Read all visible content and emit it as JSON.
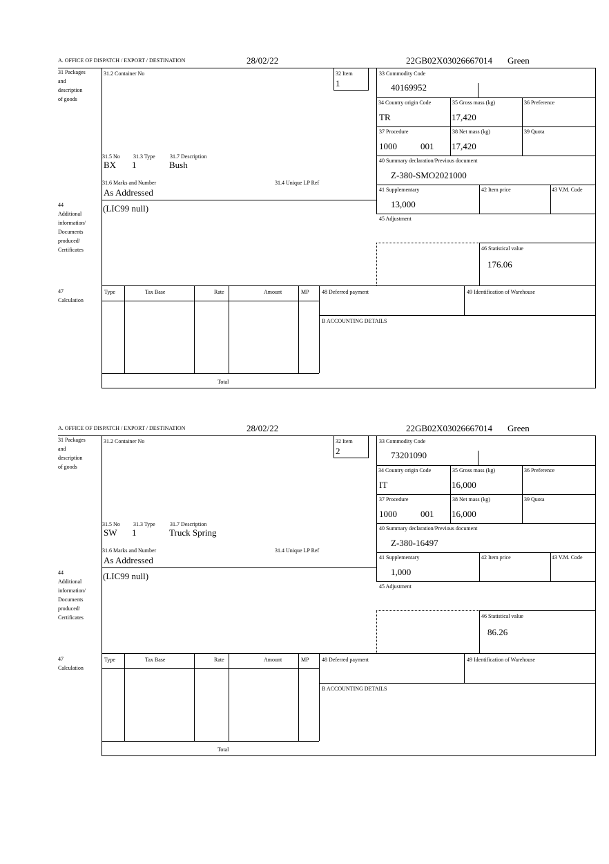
{
  "labels": {
    "office": "A.  OFFICE OF DISPATCH / EXPORT / DESTINATION",
    "packages": [
      "31 Packages",
      "and",
      "description",
      "of goods"
    ],
    "container": "31.2 Container No",
    "item": "32 Item",
    "commodity": "33 Commodity Code",
    "origin": "34 Country origin Code",
    "gross": "35 Gross mass (kg)",
    "preference": "36 Preference",
    "procedure": "37 Procedure",
    "net": "38 Net mass (kg)",
    "quota": "39 Quota",
    "summary": "40 Summary declaration/Previous document",
    "supplementary": "41 Supplementary",
    "item_price": "42 Item price",
    "vm_code": "43 V.M. Code",
    "adjustment": "45 Adjustment",
    "statistical": "46 Statistical value",
    "no": "31.5 No",
    "type": "31.3 Type",
    "description": "31.7 Description",
    "marks": "31.6 Marks and Number",
    "unique_ref": "31.4 Unique LP Ref",
    "additional": [
      "44",
      "Additional",
      "information/",
      "Documents",
      "produced/",
      "Certificates"
    ],
    "calculation": [
      "47",
      "Calculation"
    ],
    "calc_cols": [
      "Type",
      "Tax Base",
      "Rate",
      "Amount",
      "MP"
    ],
    "total": "Total",
    "deferred": "48 Deferred payment",
    "warehouse": "49 Identification of Warehouse",
    "accounting": "B ACCOUNTING DETAILS"
  },
  "items": [
    {
      "date": "28/02/22",
      "reference": "22GB02X03026667014",
      "route": "Green",
      "item": "1",
      "commodity": "40169952",
      "origin": "TR",
      "gross": "17,420",
      "procedure": "1000",
      "procedure_add": "001",
      "net": "17,420",
      "summary": "Z-380-SMO2021000",
      "supplementary": "13,000",
      "statistical": "176.06",
      "no": "BX",
      "type": "1",
      "description": "Bush",
      "marks": "As Addressed",
      "additional": "(LIC99 null)"
    },
    {
      "date": "28/02/22",
      "reference": "22GB02X03026667014",
      "route": "Green",
      "item": "2",
      "commodity": "73201090",
      "origin": "IT",
      "gross": "16,000",
      "procedure": "1000",
      "procedure_add": "001",
      "net": "16,000",
      "summary": "Z-380-16497",
      "supplementary": "1,000",
      "statistical": "86.26",
      "no": "SW",
      "type": "1",
      "description": "Truck Spring",
      "marks": "As Addressed",
      "additional": "(LIC99 null)"
    }
  ]
}
